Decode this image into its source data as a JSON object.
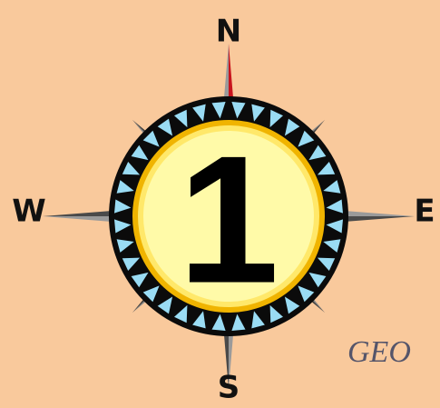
{
  "compass": {
    "north": "N",
    "east": "E",
    "south": "S",
    "west": "W",
    "center": "1"
  },
  "caption": "GEO"
}
